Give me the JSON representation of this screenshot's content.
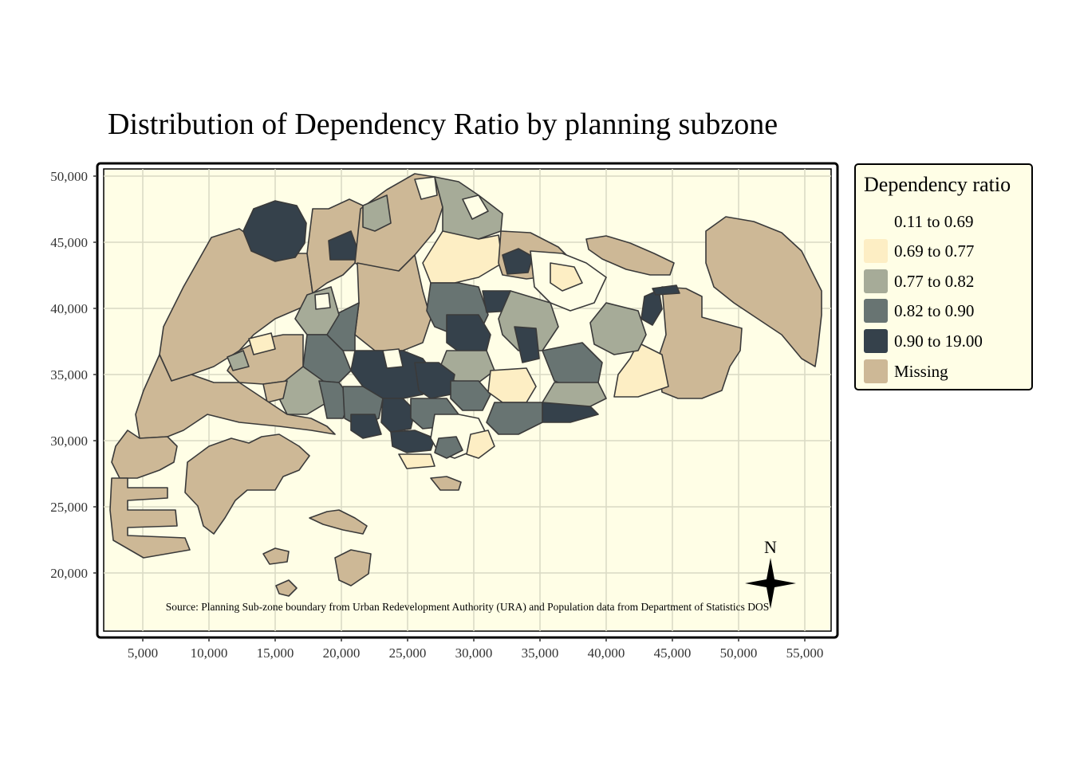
{
  "title": "Distribution of Dependency Ratio by planning subzone",
  "source_note": "Source: Planning Sub-zone boundary from Urban Redevelopment Authority (URA) and Population data from Department of Statistics DOS",
  "compass_label": "N",
  "y_ticks": [
    "50,000",
    "45,000",
    "40,000",
    "35,000",
    "30,000",
    "25,000",
    "20,000"
  ],
  "x_ticks": [
    "5,000",
    "10,000",
    "15,000",
    "20,000",
    "25,000",
    "30,000",
    "35,000",
    "40,000",
    "45,000",
    "50,000",
    "55,000"
  ],
  "legend": {
    "title": "Dependency ratio",
    "items": [
      {
        "label": "0.11 to 0.69",
        "color": "#fffee6"
      },
      {
        "label": "0.69 to 0.77",
        "color": "#fdeec4"
      },
      {
        "label": "0.77 to 0.82",
        "color": "#a6ab98"
      },
      {
        "label": "0.82 to 0.90",
        "color": "#687472"
      },
      {
        "label": "0.90 to 19.00",
        "color": "#35414b"
      },
      {
        "label": "Missing",
        "color": "#cdb896"
      }
    ]
  },
  "colors": {
    "panel_bg": "#fffee6",
    "border": "#3a3a3a",
    "grid": "#d9d9c4"
  }
}
